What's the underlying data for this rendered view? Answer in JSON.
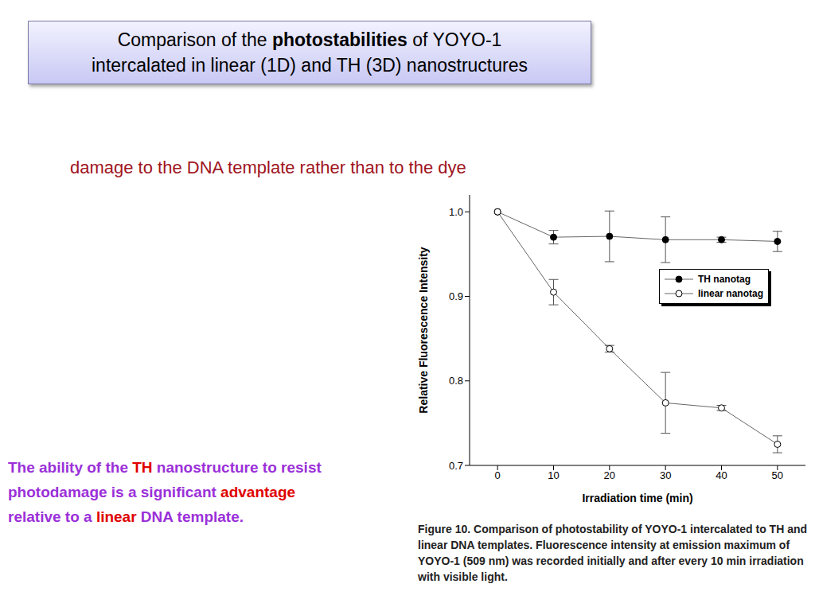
{
  "slide": {
    "title": [
      [
        {
          "text": "Comparison of the ",
          "bold": false
        },
        {
          "text": "photostabilities",
          "bold": true
        },
        {
          "text": " of YOYO-1",
          "bold": false
        }
      ],
      [
        {
          "text": "intercalated in linear (1D) and TH (3D) nanostructures",
          "bold": false
        }
      ]
    ],
    "subtitle": "damage to the DNA template rather than to the dye",
    "note": [
      [
        {
          "text": "The ability of the ",
          "color": "#9b30d9"
        },
        {
          "text": "TH",
          "color": "#e00000"
        },
        {
          "text": " nanostructure to resist",
          "color": "#9b30d9"
        }
      ],
      [
        {
          "text": "photodamage is a significant ",
          "color": "#9b30d9"
        },
        {
          "text": "advantage",
          "color": "#e00000"
        }
      ],
      [
        {
          "text": "relative to a ",
          "color": "#9b30d9"
        },
        {
          "text": "linear",
          "color": "#e00000"
        },
        {
          "text": " DNA template.",
          "color": "#9b30d9"
        }
      ]
    ]
  },
  "chart_data": {
    "type": "line",
    "caption": "Figure 10. Comparison of photostability of YOYO-1 intercalated to TH and linear DNA templates. Fluorescence intensity at emission maximum of YOYO-1 (509 nm) was recorded initially and after every 10 min irradiation with visible light.",
    "x_label": "Irradiation time (min)",
    "y_label": "Relative Fluorescence Intensity",
    "x": [
      0,
      10,
      20,
      30,
      40,
      50
    ],
    "xlim": [
      -5,
      55
    ],
    "xticks": [
      0,
      10,
      20,
      30,
      40,
      50
    ],
    "ylim": [
      0.7,
      1.02
    ],
    "yticks": [
      0.7,
      0.8,
      0.9,
      {
        "value": 1,
        "label": "1.0"
      }
    ],
    "legend": "right",
    "series": [
      {
        "name": "TH nanotag",
        "color": "#000000",
        "marker": "filled_circle",
        "values": [
          1.0,
          0.97,
          0.971,
          0.967,
          0.967,
          0.965
        ],
        "errors": [
          0,
          0.008,
          0.03,
          0.027,
          0.003,
          0.012
        ]
      },
      {
        "name": "linear nanotag",
        "color": "#000000",
        "marker": "open_circle",
        "values": [
          1.0,
          0.905,
          0.838,
          0.774,
          0.768,
          0.725
        ],
        "errors": [
          0,
          0.015,
          0.004,
          0.036,
          0.003,
          0.01
        ]
      }
    ]
  }
}
